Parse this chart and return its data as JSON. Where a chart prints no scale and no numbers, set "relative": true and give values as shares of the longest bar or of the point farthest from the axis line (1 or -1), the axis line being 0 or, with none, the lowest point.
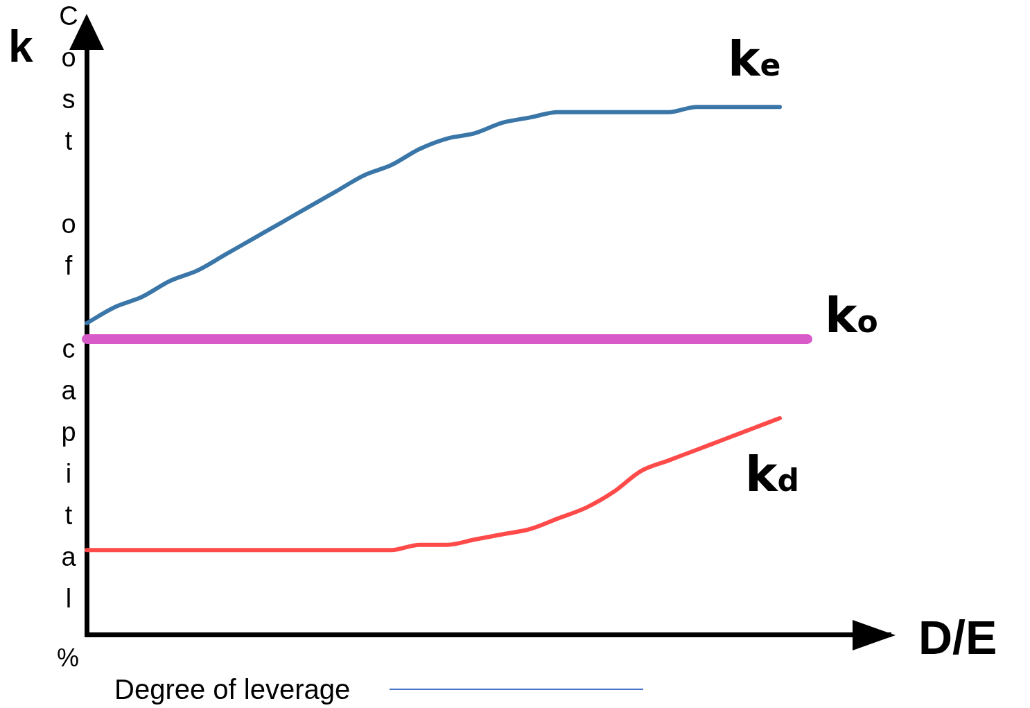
{
  "chart_data": {
    "type": "line",
    "relative": true,
    "ylabel": "Cost of capital",
    "xlabel": "D/E",
    "annotations": [
      "k",
      "%",
      "Degree of leverage"
    ],
    "legend": false,
    "categories": [
      null,
      null,
      null,
      null,
      null,
      null,
      null,
      null,
      null,
      null,
      null,
      null,
      null,
      null,
      null,
      null,
      null,
      null,
      null,
      null,
      null,
      null,
      null,
      null,
      null,
      null,
      null,
      null,
      null,
      null
    ],
    "series": [
      {
        "name": "k$_{e}$",
        "color": "#3a76a8",
        "values": [
          0.59,
          0.62,
          0.64,
          0.67,
          0.69,
          0.72,
          0.75,
          0.78,
          0.81,
          0.84,
          0.87,
          0.89,
          0.92,
          0.94,
          0.95,
          0.97,
          0.98,
          0.99,
          0.99,
          0.99,
          0.99,
          0.99,
          1,
          1,
          1,
          1,
          null,
          null,
          null,
          null
        ]
      },
      {
        "name": "k$_{o}$",
        "color": "#d85ac8",
        "values": [
          0.56,
          0.56,
          0.56,
          0.56,
          0.56,
          0.56,
          0.56,
          0.56,
          0.56,
          0.56,
          0.56,
          0.56,
          0.56,
          0.56,
          0.56,
          0.56,
          0.56,
          0.56,
          0.56,
          0.56,
          0.56,
          0.56,
          0.56,
          0.56,
          0.56,
          0.56,
          0.56,
          null,
          null,
          null
        ]
      },
      {
        "name": "k$_{d}$",
        "color": "#ff4a4a",
        "values": [
          0.16,
          0.16,
          0.16,
          0.16,
          0.16,
          0.16,
          0.16,
          0.16,
          0.16,
          0.16,
          0.16,
          0.16,
          0.17,
          0.17,
          0.18,
          0.19,
          0.2,
          0.22,
          0.24,
          0.27,
          0.31,
          0.33,
          0.35,
          0.37,
          0.39,
          0.41,
          null,
          null,
          null,
          null
        ]
      }
    ]
  }
}
